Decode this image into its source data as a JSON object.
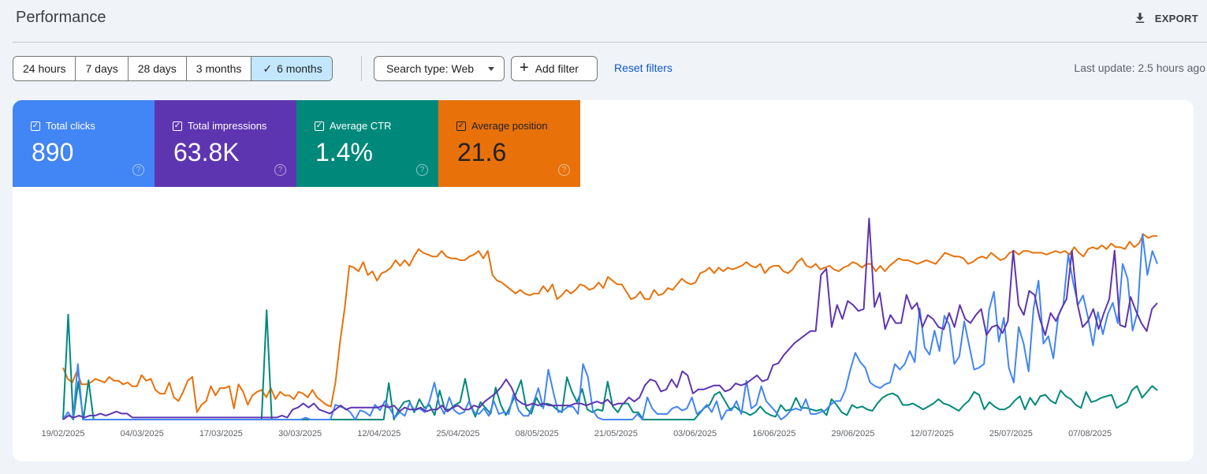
{
  "header": {
    "title": "Performance",
    "export_label": "EXPORT"
  },
  "toolbar": {
    "ranges": [
      {
        "label": "24 hours",
        "selected": false
      },
      {
        "label": "7 days",
        "selected": false
      },
      {
        "label": "28 days",
        "selected": false
      },
      {
        "label": "3 months",
        "selected": false
      },
      {
        "label": "6 months",
        "selected": true
      }
    ],
    "search_type_label": "Search type: Web",
    "add_filter_label": "Add filter",
    "reset_label": "Reset filters",
    "last_update": "Last update: 2.5 hours ago"
  },
  "metrics": [
    {
      "label": "Total clicks",
      "value": "890",
      "color": "#4285f4",
      "checked": true
    },
    {
      "label": "Total impressions",
      "value": "63.8K",
      "color": "#5e35b1",
      "checked": true
    },
    {
      "label": "Average CTR",
      "value": "1.4%",
      "color": "#00897b",
      "checked": true
    },
    {
      "label": "Average position",
      "value": "21.6",
      "color": "#e8710a",
      "checked": true
    }
  ],
  "chart_data": {
    "type": "line",
    "x_labels": [
      "19/02/2025",
      "04/03/2025",
      "17/03/2025",
      "30/03/2025",
      "12/04/2025",
      "25/04/2025",
      "08/05/2025",
      "21/05/2025",
      "03/06/2025",
      "16/06/2025",
      "29/06/2025",
      "12/07/2025",
      "25/07/2025",
      "07/08/2025"
    ],
    "series": [
      {
        "name": "Total clicks",
        "color": "#4285f4",
        "values": [
          0,
          0.04,
          0,
          0.3,
          0,
          0,
          0,
          0,
          0,
          0,
          0,
          0,
          0,
          0,
          0,
          0,
          0,
          0,
          0,
          0,
          0,
          0,
          0,
          0,
          0,
          0,
          0,
          0,
          0,
          0,
          0,
          0,
          0,
          0,
          0,
          0,
          0,
          0,
          0,
          0,
          0,
          0,
          0,
          0,
          0,
          0,
          0,
          0,
          0,
          0.01,
          0,
          0,
          0,
          0,
          0,
          0.08,
          0.07,
          0.06,
          0.04,
          0,
          0.05,
          0.04,
          0.02,
          0.08,
          0.05,
          0.1,
          0.06,
          0.01,
          0.04,
          0.02,
          0.09,
          0.05,
          0.06,
          0.04,
          0.1,
          0.2,
          0.08,
          0.03,
          0.12,
          0.05,
          0.03,
          0.04,
          0.1,
          0.04,
          0.03,
          0.06,
          0.02,
          0.1,
          0.03,
          0.04,
          0.03,
          0.14,
          0.05,
          0.02,
          0.02,
          0.09,
          0.17,
          0.06,
          0.27,
          0.15,
          0.04,
          0.05,
          0.07,
          0.07,
          0.03,
          0.3,
          0.23,
          0.05,
          0.01,
          0,
          0,
          0,
          0,
          0,
          0,
          0,
          0.03,
          0,
          0.12,
          0.06,
          0.03,
          0.03,
          0.03,
          0.06,
          0.07,
          0.05,
          0.06,
          0.12,
          0.03,
          0.05,
          0.08,
          0.04,
          0.1,
          0,
          0.05,
          0.05,
          0.1,
          0.03,
          0.21,
          0.06,
          0.08,
          0.18,
          0.1,
          0.07,
          0.04,
          0,
          0.02,
          0.05,
          0.06,
          0.05,
          0.11,
          0.03,
          0.03,
          0.04,
          0.05,
          0.08,
          0.1,
          0.1,
          0.16,
          0.27,
          0.36,
          0.31,
          0.28,
          0.2,
          0.18,
          0.17,
          0.19,
          0.2,
          0.3,
          0.27,
          0.3,
          0.37,
          0.31,
          0.6,
          0.39,
          0.35,
          0.48,
          0.37,
          0.56,
          0.51,
          0.3,
          0.34,
          0.53,
          0.4,
          0.27,
          0.28,
          0.3,
          0.59,
          0.69,
          0.42,
          0.55,
          0.28,
          0.2,
          0.5,
          0.41,
          0.26,
          0.6,
          0.75,
          0.41,
          0.45,
          0.33,
          0.56,
          0.62,
          0.89,
          0.74,
          0.62,
          0.67,
          0.55,
          0.4,
          0.58,
          0.46,
          0.57,
          0.63,
          0.52,
          0.84,
          0.76,
          0.48,
          0.58,
          1.0,
          0.78,
          0.91,
          0.84
        ],
        "scale": "clicks"
      },
      {
        "name": "Total impressions",
        "color": "#5e35b1",
        "values": [
          0,
          0.02,
          0.01,
          0.02,
          0.01,
          0.02,
          0.02,
          0.03,
          0.02,
          0.03,
          0.04,
          0.03,
          0.03,
          0.01,
          0.01,
          0.01,
          0.01,
          0.01,
          0.01,
          0.01,
          0.01,
          0.01,
          0.01,
          0.01,
          0.01,
          0.01,
          0.01,
          0.01,
          0.01,
          0.01,
          0.01,
          0.01,
          0.01,
          0.01,
          0.01,
          0.01,
          0.01,
          0.01,
          0.01,
          0.01,
          0.01,
          0.02,
          0.01,
          0.05,
          0.06,
          0.08,
          0.06,
          0.08,
          0.05,
          0.04,
          0.03,
          0.05,
          0.07,
          0.05,
          0.06,
          0.06,
          0.06,
          0.06,
          0.06,
          0.06,
          0.07,
          0.06,
          0.07,
          0.04,
          0.06,
          0.05,
          0.05,
          0.06,
          0.04,
          0.05,
          0.05,
          0.07,
          0.04,
          0.06,
          0.07,
          0.05,
          0.05,
          0.07,
          0.06,
          0.09,
          0.11,
          0.13,
          0.16,
          0.2,
          0.16,
          0.1,
          0.08,
          0.07,
          0.08,
          0.07,
          0.08,
          0.07,
          0.07,
          0.07,
          0.07,
          0.07,
          0.08,
          0.08,
          0.07,
          0.08,
          0.09,
          0.08,
          0.1,
          0.07,
          0.08,
          0.08,
          0.11,
          0.09,
          0.11,
          0.17,
          0.2,
          0.19,
          0.14,
          0.15,
          0.2,
          0.16,
          0.24,
          0.22,
          0.13,
          0.15,
          0.15,
          0.16,
          0.17,
          0.17,
          0.14,
          0.15,
          0.18,
          0.17,
          0.18,
          0.2,
          0.22,
          0.19,
          0.2,
          0.27,
          0.28,
          0.32,
          0.35,
          0.38,
          0.4,
          0.42,
          0.44,
          0.44,
          0.72,
          0.75,
          0.46,
          0.57,
          0.5,
          0.59,
          0.57,
          0.54,
          0.55,
          1.0,
          0.56,
          0.63,
          0.45,
          0.52,
          0.48,
          0.48,
          0.62,
          0.55,
          0.58,
          0.46,
          0.52,
          0.5,
          0.46,
          0.45,
          0.53,
          0.46,
          0.57,
          0.5,
          0.48,
          0.52,
          0.55,
          0.42,
          0.46,
          0.47,
          0.43,
          0.49,
          0.84,
          0.57,
          0.52,
          0.64,
          0.62,
          0.5,
          0.42,
          0.53,
          0.49,
          0.55,
          0.6,
          0.84,
          0.58,
          0.46,
          0.49,
          0.55,
          0.45,
          0.53,
          0.6,
          0.84,
          0.47,
          0.46,
          0.61,
          0.54,
          0.48,
          0.44,
          0.55,
          0.58
        ],
        "scale": "impressions"
      },
      {
        "name": "Average CTR",
        "color": "#00897b",
        "values": [
          0,
          0.72,
          0,
          0.26,
          0,
          0.27,
          0,
          0,
          0,
          0,
          0,
          0,
          0,
          0,
          0,
          0,
          0,
          0,
          0,
          0,
          0,
          0,
          0,
          0,
          0,
          0,
          0,
          0,
          0,
          0,
          0,
          0,
          0,
          0,
          0,
          0,
          0,
          0,
          0,
          0,
          0.75,
          0,
          0,
          0,
          0,
          0,
          0,
          0,
          0,
          0,
          0,
          0,
          0,
          0,
          0,
          0,
          0,
          0,
          0,
          0,
          0,
          0,
          0,
          0,
          0.25,
          0,
          0.07,
          0.12,
          0.13,
          0.05,
          0.14,
          0.08,
          0.1,
          0.03,
          0.2,
          0.07,
          0.07,
          0.1,
          0.12,
          0.28,
          0.1,
          0.02,
          0.12,
          0.08,
          0.04,
          0.22,
          0.1,
          0.03,
          0.1,
          0.18,
          0.27,
          0.08,
          0.04,
          0.15,
          0.09,
          0.11,
          0.1,
          0.07,
          0.05,
          0.29,
          0.19,
          0.12,
          0.21,
          0.07,
          0.05,
          0.07,
          0.06,
          0.26,
          0.09,
          0.05,
          0.11,
          0.11,
          0.05,
          0.05,
          0.0,
          0.0,
          0.0,
          0.0,
          0.0,
          0.0,
          0.0,
          0.0,
          0.0,
          0.0,
          0.0,
          0.04,
          0.08,
          0.1,
          0.17,
          0.19,
          0.13,
          0.07,
          0.09,
          0.06,
          0.05,
          0.03,
          0.05,
          0.09,
          0.05,
          0.03,
          0.02,
          0.1,
          0.06,
          0.07,
          0.15,
          0.08,
          0.08,
          0.07,
          0.06,
          0.07,
          0.03,
          0.14,
          0.1,
          0.05,
          0.03,
          0.1,
          0.08,
          0.09,
          0.07,
          0.06,
          0.11,
          0.15,
          0.17,
          0.18,
          0.16,
          0.1,
          0.1,
          0.11,
          0.09,
          0.07,
          0.09,
          0.11,
          0.14,
          0.11,
          0.1,
          0.08,
          0.06,
          0.1,
          0.13,
          0.19,
          0.17,
          0.07,
          0.12,
          0.09,
          0.07,
          0.07,
          0.09,
          0.13,
          0.16,
          0.07,
          0.15,
          0.1,
          0.16,
          0.17,
          0.13,
          0.11,
          0.2,
          0.16,
          0.14,
          0.1,
          0.08,
          0.19,
          0.12,
          0.13,
          0.15,
          0.16,
          0.17,
          0.08,
          0.1,
          0.12,
          0.2,
          0.23,
          0.15,
          0.19,
          0.23,
          0.2
        ],
        "scale": "ctr"
      },
      {
        "name": "Average position",
        "color": "#e8710a",
        "values": [
          0.28,
          0.22,
          0.2,
          0.26,
          0.19,
          0.19,
          0.2,
          0.22,
          0.21,
          0.2,
          0.23,
          0.21,
          0.21,
          0.19,
          0.2,
          0.18,
          0.18,
          0.24,
          0.21,
          0.22,
          0.16,
          0.14,
          0.14,
          0.2,
          0.12,
          0.1,
          0.15,
          0.21,
          0.23,
          0.04,
          0.08,
          0.1,
          0.18,
          0.13,
          0.17,
          0.17,
          0.18,
          0.06,
          0.19,
          0.15,
          0.08,
          0.13,
          0.15,
          0.16,
          0.12,
          0.17,
          0.11,
          0.15,
          0.13,
          0.13,
          0.11,
          0.15,
          0.14,
          0.12,
          0.16,
          0.12,
          0.1,
          0.08,
          0.07,
          0.2,
          0.42,
          0.6,
          0.83,
          0.82,
          0.8,
          0.85,
          0.78,
          0.8,
          0.75,
          0.79,
          0.8,
          0.82,
          0.86,
          0.83,
          0.86,
          0.83,
          0.88,
          0.92,
          0.9,
          0.89,
          0.88,
          0.88,
          0.91,
          0.88,
          0.87,
          0.87,
          0.86,
          0.86,
          0.88,
          0.89,
          0.91,
          0.87,
          0.91,
          0.78,
          0.75,
          0.74,
          0.72,
          0.7,
          0.68,
          0.7,
          0.68,
          0.67,
          0.68,
          0.68,
          0.72,
          0.69,
          0.73,
          0.65,
          0.67,
          0.7,
          0.68,
          0.7,
          0.73,
          0.72,
          0.7,
          0.71,
          0.74,
          0.71,
          0.77,
          0.75,
          0.73,
          0.73,
          0.69,
          0.65,
          0.66,
          0.69,
          0.65,
          0.65,
          0.7,
          0.67,
          0.68,
          0.71,
          0.7,
          0.73,
          0.76,
          0.74,
          0.73,
          0.74,
          0.79,
          0.8,
          0.82,
          0.79,
          0.82,
          0.8,
          0.82,
          0.81,
          0.82,
          0.83,
          0.85,
          0.83,
          0.82,
          0.84,
          0.79,
          0.82,
          0.83,
          0.83,
          0.8,
          0.79,
          0.81,
          0.85,
          0.87,
          0.83,
          0.82,
          0.84,
          0.81,
          0.82,
          0.83,
          0.81,
          0.8,
          0.82,
          0.83,
          0.85,
          0.84,
          0.82,
          0.84,
          0.84,
          0.8,
          0.83,
          0.8,
          0.83,
          0.85,
          0.87,
          0.86,
          0.86,
          0.85,
          0.84,
          0.85,
          0.86,
          0.85,
          0.84,
          0.87,
          0.9,
          0.89,
          0.88,
          0.88,
          0.87,
          0.84,
          0.85,
          0.87,
          0.88,
          0.87,
          0.9,
          0.88,
          0.86,
          0.87,
          0.9,
          0.91,
          0.89,
          0.91,
          0.91,
          0.9,
          0.9,
          0.9,
          0.89,
          0.9,
          0.91,
          0.9,
          0.91,
          0.89,
          0.93,
          0.9,
          0.88,
          0.92,
          0.93,
          0.92,
          0.94,
          0.92,
          0.95,
          0.93,
          0.93,
          0.92,
          0.96,
          0.93,
          0.95,
          1.0,
          0.98,
          0.99,
          0.99
        ],
        "scale": "position"
      }
    ]
  }
}
